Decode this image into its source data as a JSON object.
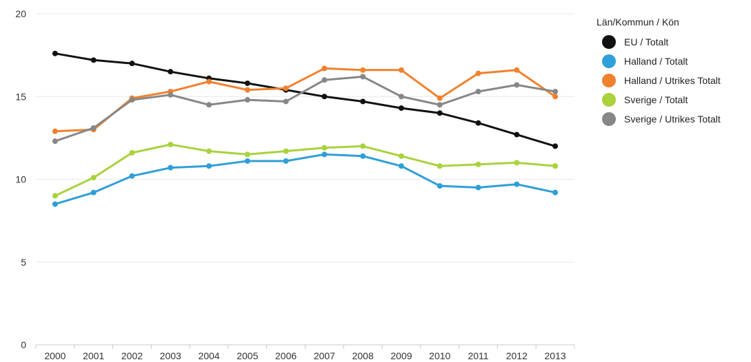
{
  "chart_data": {
    "type": "line",
    "title": "",
    "xlabel": "",
    "ylabel": "",
    "x": [
      "2000",
      "2001",
      "2002",
      "2003",
      "2004",
      "2005",
      "2006",
      "2007",
      "2008",
      "2009",
      "2010",
      "2011",
      "2012",
      "2013"
    ],
    "ylim": [
      0,
      20
    ],
    "yticks": [
      "0",
      "5",
      "10",
      "15",
      "20"
    ],
    "grid": true,
    "legend_title": "Län/Kommun / Kön",
    "legend_position": "right",
    "series": [
      {
        "name": "EU / Totalt",
        "color": "#111111",
        "values": [
          17.6,
          17.2,
          17.0,
          16.5,
          16.1,
          15.8,
          15.4,
          15.0,
          14.7,
          14.3,
          14.0,
          13.4,
          12.7,
          12.0
        ]
      },
      {
        "name": "Halland / Totalt",
        "color": "#2e9fd8",
        "values": [
          8.5,
          9.2,
          10.2,
          10.7,
          10.8,
          11.1,
          11.1,
          11.5,
          11.4,
          10.8,
          9.6,
          9.5,
          9.7,
          9.2
        ]
      },
      {
        "name": "Halland / Utrikes Totalt",
        "color": "#f0812e",
        "values": [
          12.9,
          13.0,
          14.9,
          15.3,
          15.9,
          15.4,
          15.5,
          16.7,
          16.6,
          16.6,
          14.9,
          16.4,
          16.6,
          15.0
        ]
      },
      {
        "name": "Sverige / Totalt",
        "color": "#a9d23c",
        "values": [
          9.0,
          10.1,
          11.6,
          12.1,
          11.7,
          11.5,
          11.7,
          11.9,
          12.0,
          11.4,
          10.8,
          10.9,
          11.0,
          10.8
        ]
      },
      {
        "name": "Sverige / Utrikes Totalt",
        "color": "#878787",
        "values": [
          12.3,
          13.1,
          14.8,
          15.1,
          14.5,
          14.8,
          14.7,
          16.0,
          16.2,
          15.0,
          14.5,
          15.3,
          15.7,
          15.3
        ]
      }
    ]
  }
}
